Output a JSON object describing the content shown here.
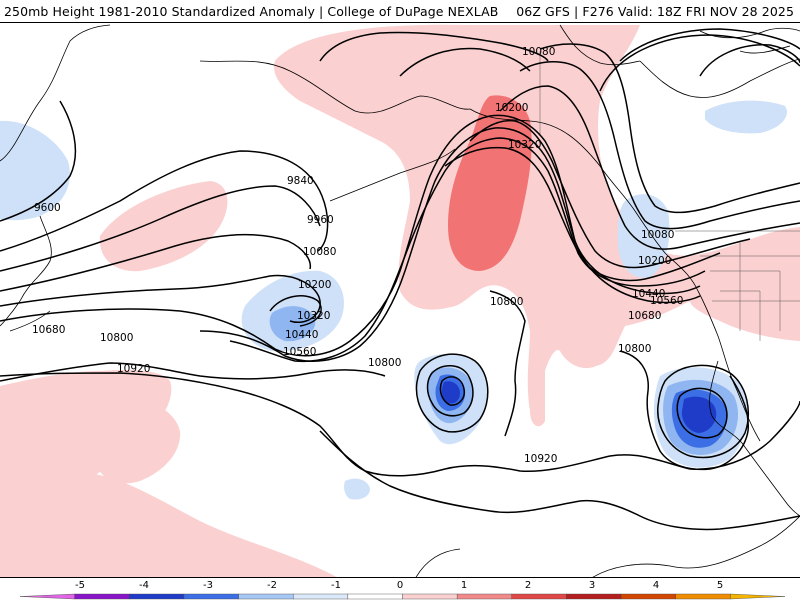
{
  "title": {
    "left": "250mb Height 1981-2010 Standardized Anomaly | College of DuPage NEXLAB",
    "right": "06Z GFS | F276 Valid: 18Z FRI NOV 28 2025"
  },
  "contour_labels": [
    "9600",
    "9840",
    "9960",
    "10080",
    "10200",
    "10320",
    "10440",
    "10560",
    "10680",
    "10800",
    "10920",
    "10080",
    "10200",
    "10320",
    "10440",
    "10560",
    "10680",
    "10800",
    "10800",
    "10800",
    "10920",
    "10080",
    "10200"
  ],
  "colorbar": {
    "ticks": [
      "-5",
      "-4",
      "-3",
      "-2",
      "-1",
      "0",
      "1",
      "2",
      "3",
      "4",
      "5"
    ],
    "colors": [
      "#e066e6",
      "#8a14c8",
      "#1e3cc8",
      "#3c6ee6",
      "#a6c8f5",
      "#dbe9fb",
      "#ffffff",
      "#fbd0d0",
      "#f28a8a",
      "#e04848",
      "#b41e1e",
      "#d24600",
      "#f08c00",
      "#f5b400"
    ]
  },
  "anomaly_colors": {
    "pos1": "#fbd0d0",
    "pos2": "#f27373",
    "neg1": "#cfe1f8",
    "neg2": "#8fb6f0",
    "neg3": "#3c6ee6",
    "neg4": "#1e3cc8"
  }
}
